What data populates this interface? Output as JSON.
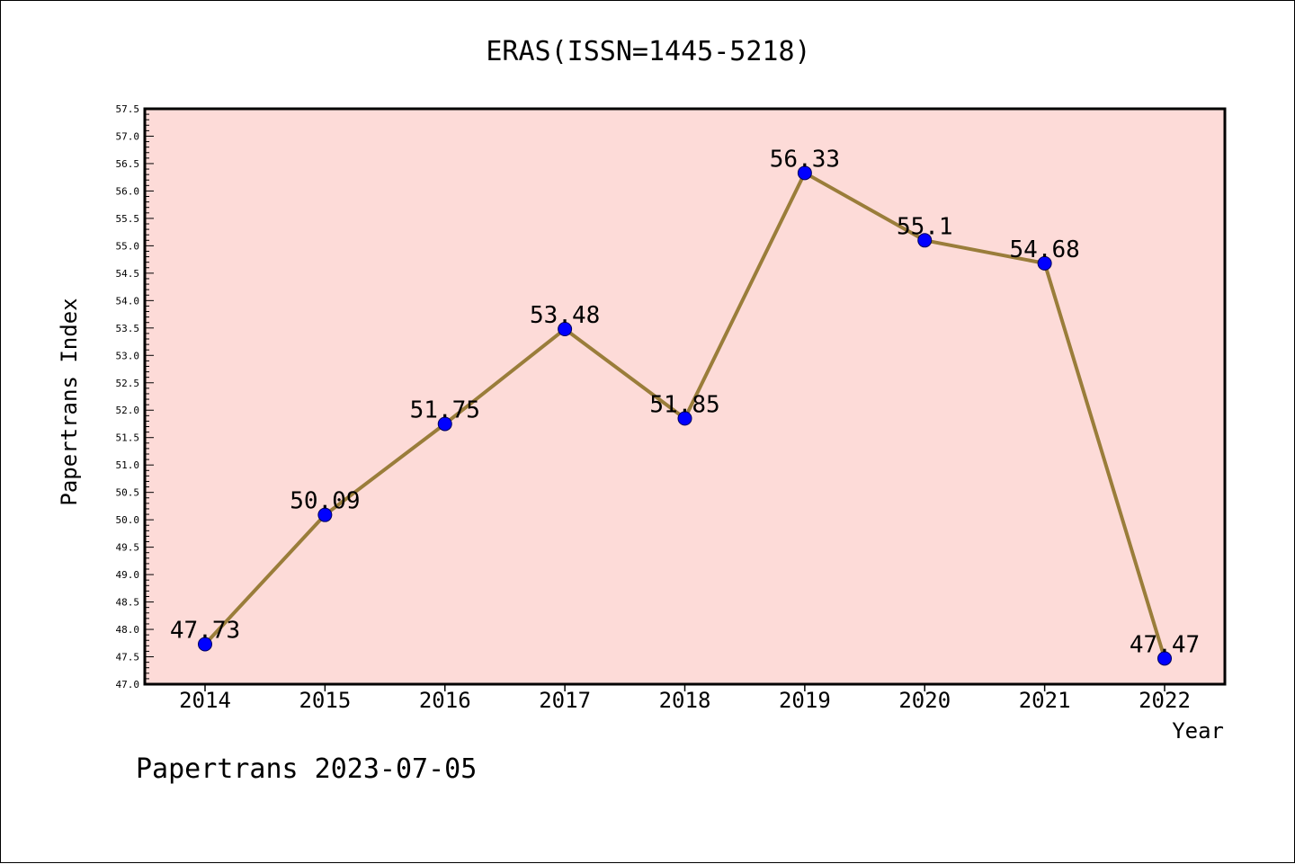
{
  "chart_data": {
    "type": "line",
    "title": "ERAS(ISSN=1445-5218)",
    "xlabel": "Year",
    "ylabel": "Papertrans Index",
    "categories": [
      "2014",
      "2015",
      "2016",
      "2017",
      "2018",
      "2019",
      "2020",
      "2021",
      "2022"
    ],
    "values": [
      47.73,
      50.09,
      51.75,
      53.48,
      51.85,
      56.33,
      55.1,
      54.68,
      47.47
    ],
    "value_labels": [
      "47.73",
      "50.09",
      "51.75",
      "53.48",
      "51.85",
      "56.33",
      "55.1",
      "54.68",
      "47.47"
    ],
    "ylim": [
      47.0,
      57.5
    ],
    "yticks": [
      "47.0",
      "47.5",
      "48.0",
      "48.5",
      "49.0",
      "49.5",
      "50.0",
      "50.5",
      "51.0",
      "51.5",
      "52.0",
      "52.5",
      "53.0",
      "53.5",
      "54.0",
      "54.5",
      "55.0",
      "55.5",
      "56.0",
      "56.5",
      "57.0",
      "57.5"
    ],
    "grid": false,
    "legend": "none",
    "colors": {
      "plot_background": "#fddbd8",
      "line": "#9a7d3a",
      "marker": "#0000ff",
      "axis": "#000000"
    }
  },
  "footer": {
    "text": "Papertrans 2023-07-05"
  }
}
